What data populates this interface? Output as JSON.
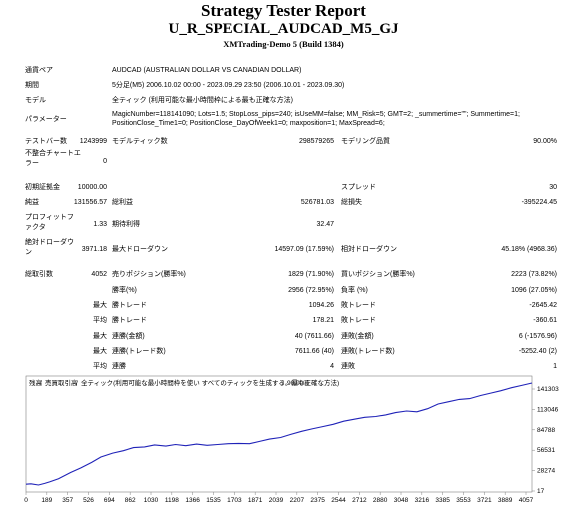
{
  "header": {
    "title": "Strategy Tester Report",
    "ea_name": "U_R_SPECIAL_AUDCAD_M5_GJ",
    "server": "XMTrading-Demo 5 (Build 1384)"
  },
  "info": {
    "symbol_label": "通貨ペア",
    "symbol_value": "AUDCAD (AUSTRALIAN DOLLAR VS CANADIAN DOLLAR)",
    "period_label": "期間",
    "period_value": "5分足(M5) 2006.10.02 00:00 - 2023.09.29 23:50 (2006.10.01 - 2023.09.30)",
    "model_label": "モデル",
    "model_value": "全ティック (利用可能な最小時間枠による最も正確な方法)",
    "params_label": "パラメーター",
    "params_line1": "MagicNumber=118141090; Lots=1.5; StopLoss_pips=240; isUseMM=false; MM_Risk=5; GMT=2; _summertime=\"\"; Summertime=1;",
    "params_line2": "PositionClose_Time1=0; PositionClose_DayOfWeek1=0; maxposition=1; MaxSpread=6;"
  },
  "stats": {
    "bars_label": "テストバー数",
    "bars_value": "1243999",
    "ticks_label": "モデルティック数",
    "ticks_value": "298579265",
    "quality_label": "モデリング品質",
    "quality_value": "90.00%",
    "mismatch_label": "不整合チャートエラー",
    "mismatch_value": "0",
    "deposit_label": "初期証拠金",
    "deposit_value": "10000.00",
    "spread_label": "スプレッド",
    "spread_value": "30",
    "netprofit_label": "純益",
    "netprofit_value": "131556.57",
    "grossprofit_label": "総利益",
    "grossprofit_value": "526781.03",
    "grossloss_label": "総損失",
    "grossloss_value": "-395224.45",
    "pf_label": "プロフィットファクタ",
    "pf_value": "1.33",
    "expected_label": "期待利得",
    "expected_value": "32.47",
    "absdd_label": "絶対ドローダウン",
    "absdd_value": "3971.18",
    "maxdd_label": "最大ドローダウン",
    "maxdd_value": "14597.09 (17.59%)",
    "reldd_label": "相対ドローダウン",
    "reldd_value": "45.18% (4968.36)",
    "trades_label": "総取引数",
    "trades_value": "4052",
    "short_label": "売りポジション(勝率%)",
    "short_value": "1829 (71.90%)",
    "long_label": "買いポジション(勝率%)",
    "long_value": "2223 (73.82%)",
    "winrate_label": "勝率(%)",
    "winrate_value": "2956 (72.95%)",
    "lossrate_label": "負率 (%)",
    "lossrate_value": "1096 (27.05%)",
    "max_label": "最大",
    "avg_label": "平均",
    "winner_label": "勝トレード",
    "loser_label": "敗トレード",
    "largest_win_value": "1094.26",
    "largest_loss_value": "-2645.42",
    "avg_win_value": "178.21",
    "avg_loss_value": "-360.61",
    "consec_wins_money_label": "連勝(金額)",
    "consec_wins_money_value": "40 (7611.66)",
    "consec_losses_money_label": "連敗(金額)",
    "consec_losses_money_value": "6 (-1576.96)",
    "consec_wins_trades_label": "連勝(トレード数)",
    "consec_wins_trades_value": "7611.66 (40)",
    "consec_losses_trades_label": "連敗(トレード数)",
    "consec_losses_trades_value": "-5252.40 (2)",
    "avg_consec_wins_label": "連勝",
    "avg_consec_wins_value": "4",
    "avg_consec_losses_label": "連敗",
    "avg_consec_losses_value": "1"
  },
  "chart_data": {
    "type": "line",
    "legend_balance": "残高",
    "legend_lots": "売買取引高",
    "legend_model": "全ティック(利用可能な最小時間枠を使い すべてのティックを生成する。最も正確な方法)",
    "legend_quality": "90.00%",
    "x_ticks": [
      "0",
      "189",
      "357",
      "526",
      "694",
      "862",
      "1030",
      "1198",
      "1366",
      "1535",
      "1703",
      "1871",
      "2039",
      "2207",
      "2375",
      "2544",
      "2712",
      "2880",
      "3048",
      "3216",
      "3385",
      "3553",
      "3721",
      "3889",
      "4057"
    ],
    "y_ticks": [
      "141303",
      "113046",
      "84788",
      "56531",
      "28274",
      "17"
    ],
    "ylim": [
      17,
      141303
    ],
    "xlim": [
      0,
      4052
    ],
    "x": [
      0,
      40,
      100,
      150,
      189,
      260,
      357,
      440,
      526,
      600,
      694,
      780,
      862,
      950,
      1030,
      1120,
      1198,
      1280,
      1366,
      1450,
      1535,
      1620,
      1703,
      1790,
      1871,
      1950,
      2039,
      2120,
      2207,
      2290,
      2375,
      2460,
      2544,
      2630,
      2712,
      2800,
      2880,
      2960,
      3048,
      3130,
      3216,
      3300,
      3385,
      3470,
      3553,
      3640,
      3721,
      3800,
      3889,
      3970,
      4052
    ],
    "y": [
      10000,
      10500,
      9000,
      11000,
      13000,
      17000,
      25000,
      31000,
      38000,
      45000,
      50000,
      53000,
      57000,
      58000,
      60500,
      59000,
      61000,
      59500,
      61500,
      60000,
      61000,
      62000,
      62500,
      62000,
      65000,
      68000,
      70000,
      74000,
      78000,
      81000,
      84000,
      87000,
      91000,
      93500,
      96000,
      97000,
      99000,
      102000,
      104000,
      103000,
      107000,
      113000,
      116000,
      119000,
      120000,
      124000,
      127000,
      130000,
      134000,
      137000,
      140000
    ],
    "colors": {
      "balance": "#1f22b8",
      "lots": "#2eb82e",
      "grid_bg": "#ffffff"
    }
  }
}
